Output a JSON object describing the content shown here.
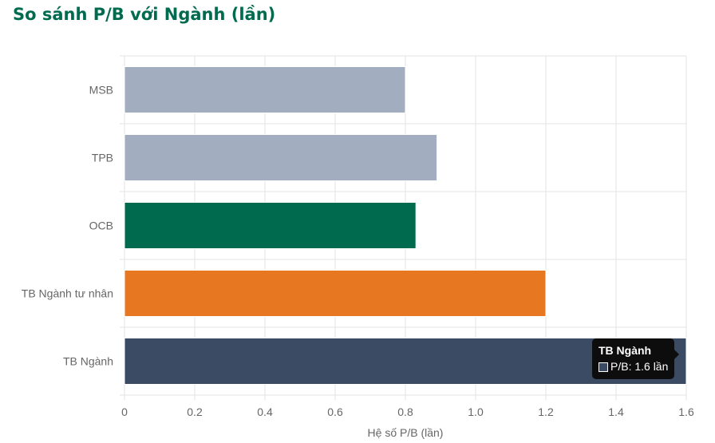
{
  "page_title": "So sánh P/B với Ngành (lần)",
  "chart_data": {
    "type": "bar",
    "orientation": "horizontal",
    "title": "So sánh P/B với Ngành (lần)",
    "xlabel": "Hệ số P/B (lần)",
    "ylabel": "",
    "xlim": [
      0,
      1.6
    ],
    "x_ticks": [
      "0",
      "0.2",
      "0.4",
      "0.6",
      "0.8",
      "1.0",
      "1.2",
      "1.4",
      "1.6"
    ],
    "categories": [
      "MSB",
      "TPB",
      "OCB",
      "TB Ngành tư nhân",
      "TB Ngành"
    ],
    "values": [
      0.8,
      0.89,
      0.83,
      1.2,
      1.6
    ],
    "colors": [
      "#a2aebf",
      "#a2aebf",
      "#006a4e",
      "#e87722",
      "#3c4b64"
    ],
    "grid": true,
    "legend": "none"
  },
  "tooltip": {
    "title": "TB Ngành",
    "line": "P/B: 1.6 lần"
  }
}
